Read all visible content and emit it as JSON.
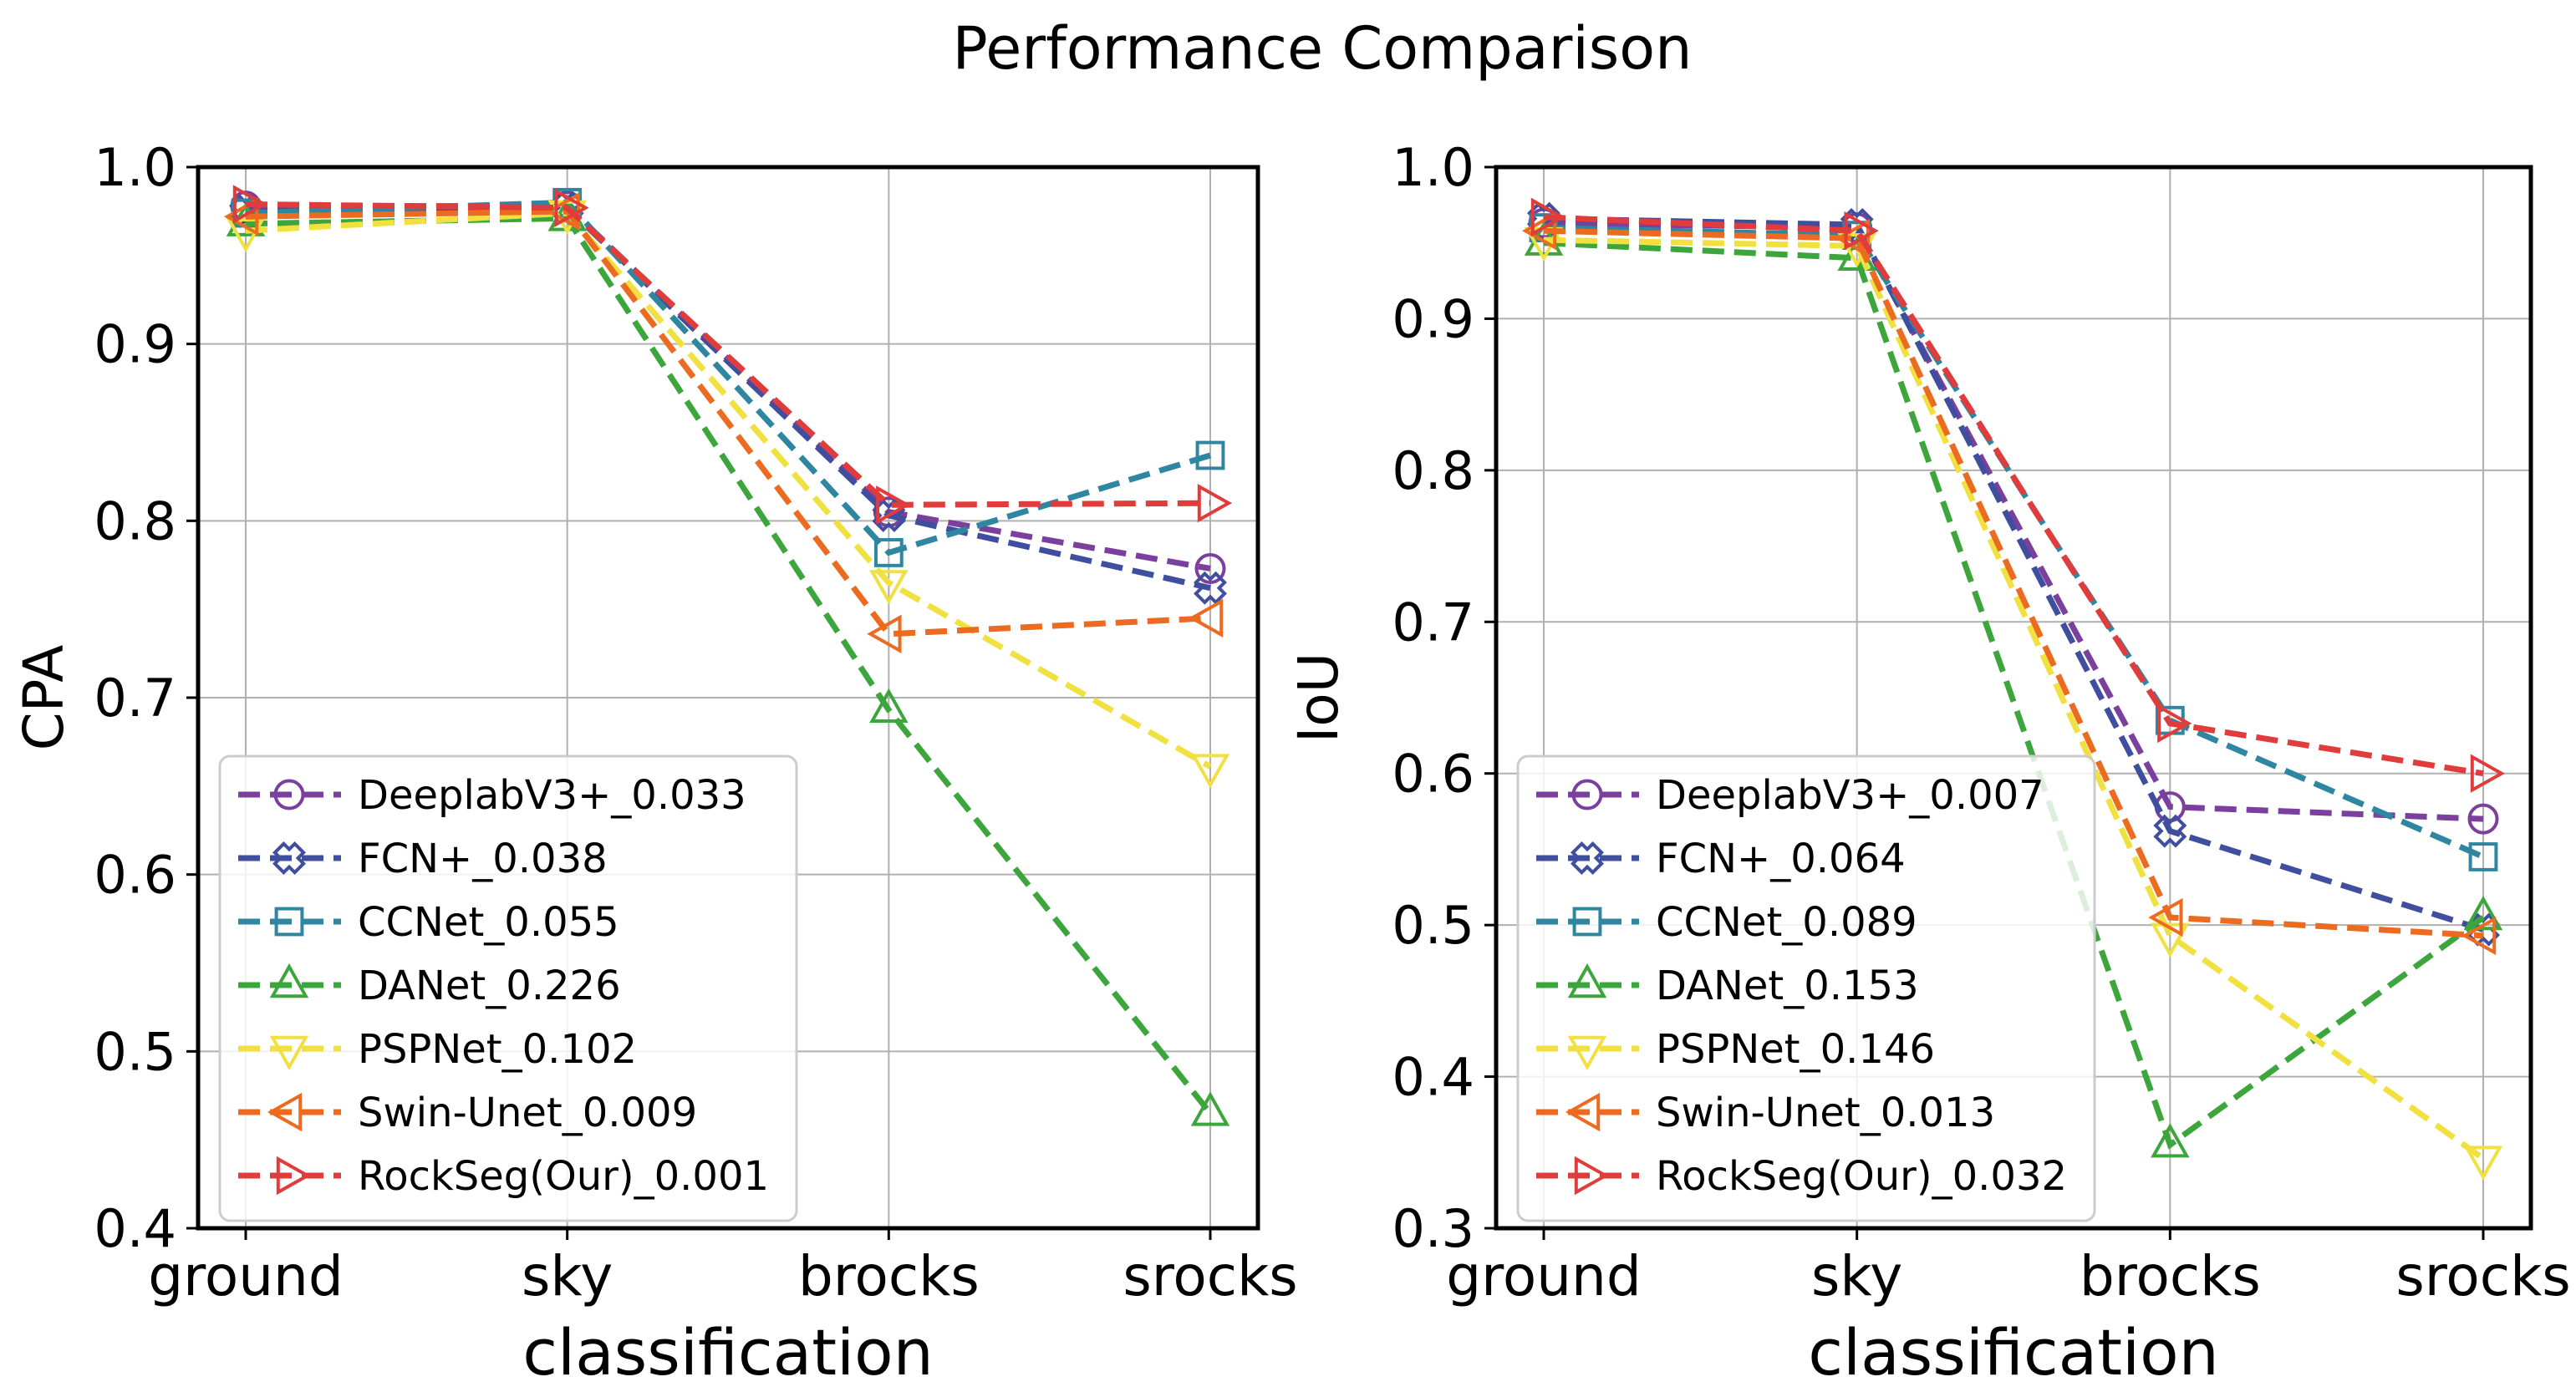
{
  "figure": {
    "suptitle": "Performance Comparison"
  },
  "chart_data": [
    {
      "type": "line",
      "title": "",
      "xlabel": "classification",
      "ylabel": "CPA",
      "categories": [
        "ground",
        "sky",
        "brocks",
        "srocks"
      ],
      "ylim": [
        0.4,
        1.0
      ],
      "yticks": [
        "0.4",
        "0.5",
        "0.6",
        "0.7",
        "0.8",
        "0.9",
        "1.0"
      ],
      "grid": true,
      "legend_position": "lower-left",
      "series": [
        {
          "name": "DeeplabV3+_0.033",
          "color": "#7b3f9e",
          "marker": "circle",
          "values": [
            0.978,
            0.978,
            0.805,
            0.773
          ]
        },
        {
          "name": "FCN+_0.038",
          "color": "#3f4e9e",
          "marker": "x-square",
          "values": [
            0.975,
            0.977,
            0.803,
            0.762
          ]
        },
        {
          "name": "CCNet_0.055",
          "color": "#2e86a0",
          "marker": "square",
          "values": [
            0.974,
            0.98,
            0.782,
            0.837
          ]
        },
        {
          "name": "DANet_0.226",
          "color": "#3ca63c",
          "marker": "triangle-up",
          "values": [
            0.968,
            0.971,
            0.693,
            0.465
          ]
        },
        {
          "name": "PSPNet_0.102",
          "color": "#f0e040",
          "marker": "triangle-down",
          "values": [
            0.964,
            0.974,
            0.765,
            0.661
          ]
        },
        {
          "name": "Swin-Unet_0.009",
          "color": "#ec6b20",
          "marker": "triangle-left",
          "values": [
            0.972,
            0.975,
            0.736,
            0.745
          ]
        },
        {
          "name": "RockSeg(Our)_0.001",
          "color": "#e03c3c",
          "marker": "triangle-right",
          "values": [
            0.979,
            0.977,
            0.809,
            0.81
          ]
        }
      ]
    },
    {
      "type": "line",
      "title": "",
      "xlabel": "classification",
      "ylabel": "IoU",
      "categories": [
        "ground",
        "sky",
        "brocks",
        "srocks"
      ],
      "ylim": [
        0.3,
        1.0
      ],
      "yticks": [
        "0.3",
        "0.4",
        "0.5",
        "0.6",
        "0.7",
        "0.8",
        "0.9",
        "1.0"
      ],
      "grid": true,
      "legend_position": "lower-left",
      "series": [
        {
          "name": "DeeplabV3+_0.007",
          "color": "#7b3f9e",
          "marker": "circle",
          "values": [
            0.963,
            0.96,
            0.578,
            0.57
          ]
        },
        {
          "name": "FCN+_0.064",
          "color": "#3f4e9e",
          "marker": "x-square",
          "values": [
            0.966,
            0.962,
            0.562,
            0.497
          ]
        },
        {
          "name": "CCNet_0.089",
          "color": "#2e86a0",
          "marker": "square",
          "values": [
            0.96,
            0.955,
            0.635,
            0.545
          ]
        },
        {
          "name": "DANet_0.153",
          "color": "#3ca63c",
          "marker": "triangle-up",
          "values": [
            0.95,
            0.94,
            0.355,
            0.505
          ]
        },
        {
          "name": "PSPNet_0.146",
          "color": "#f0e040",
          "marker": "triangle-down",
          "values": [
            0.952,
            0.948,
            0.493,
            0.346
          ]
        },
        {
          "name": "Swin-Unet_0.013",
          "color": "#ec6b20",
          "marker": "triangle-left",
          "values": [
            0.958,
            0.953,
            0.505,
            0.493
          ]
        },
        {
          "name": "RockSeg(Our)_0.032",
          "color": "#e03c3c",
          "marker": "triangle-right",
          "values": [
            0.967,
            0.958,
            0.633,
            0.6
          ]
        }
      ]
    }
  ]
}
